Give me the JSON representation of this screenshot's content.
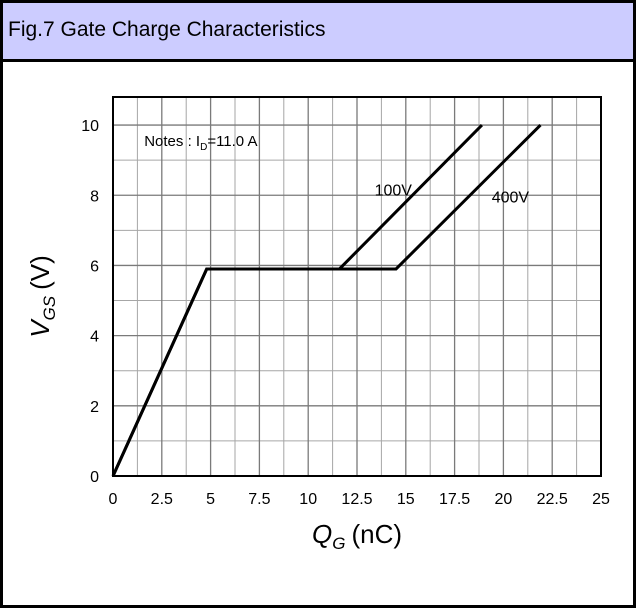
{
  "header": {
    "title": "Fig.7 Gate Charge Characteristics"
  },
  "chart_data": {
    "type": "line",
    "title": "Fig.7 Gate Charge Characteristics",
    "xlabel": "Q",
    "xlabel_sub": "G",
    "xlabel_unit": "(nC)",
    "ylabel": "V",
    "ylabel_sub": "GS",
    "ylabel_unit": "(V)",
    "xlim": [
      0,
      25
    ],
    "ylim": [
      0,
      10
    ],
    "xticks": [
      "0",
      "2.5",
      "5",
      "7.5",
      "10",
      "12.5",
      "15",
      "17.5",
      "20",
      "22.5",
      "25"
    ],
    "yticks": [
      "0",
      "2",
      "4",
      "6",
      "8",
      "10"
    ],
    "grid": true,
    "note_prefix": "Notes : I",
    "note_sub": "D",
    "note_suffix": "=11.0 A",
    "series": [
      {
        "name": "100V",
        "x": [
          0,
          4.8,
          11.6,
          18.9
        ],
        "y": [
          0,
          5.9,
          5.9,
          10
        ]
      },
      {
        "name": "400V",
        "x": [
          0,
          4.8,
          14.5,
          21.9
        ],
        "y": [
          0,
          5.9,
          5.9,
          10
        ]
      }
    ],
    "annotations": [
      {
        "text": "100V",
        "series": "100V"
      },
      {
        "text": "400V",
        "series": "400V"
      }
    ]
  }
}
